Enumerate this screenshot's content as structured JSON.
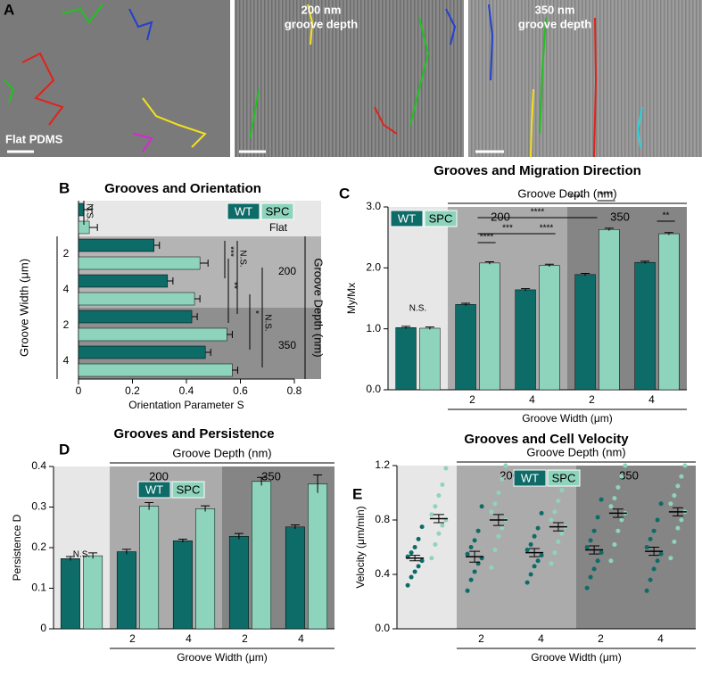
{
  "panel_labels": [
    "A",
    "B",
    "C",
    "D",
    "E"
  ],
  "images": [
    {
      "label": [
        "Flat PDMS"
      ]
    },
    {
      "label": [
        "200 nm",
        "groove depth"
      ]
    },
    {
      "label": [
        "350 nm",
        "groove depth"
      ]
    }
  ],
  "chart_data": [
    {
      "type": "hbar",
      "title": "Grooves and Orientation",
      "xlabel": "Orientation Parameter S",
      "ylabel": "Groove Width (μm)",
      "depth_title": "Groove Depth (nm)",
      "categories": [
        null,
        "2",
        "4",
        "2",
        "4"
      ],
      "depth_labels": [
        "Flat",
        "200",
        "350"
      ],
      "xlim": [
        0,
        0.8
      ],
      "xticks": [
        0,
        0.2,
        0.4,
        0.6,
        0.8
      ],
      "series": [
        {
          "name": "WT",
          "color": "#0d6b68",
          "values": [
            0.02,
            0.28,
            0.33,
            0.42,
            0.47
          ],
          "errors": [
            0.03,
            0.02,
            0.02,
            0.02,
            0.02
          ]
        },
        {
          "name": "SPC",
          "color": "#8ed4bd",
          "values": [
            0.04,
            0.45,
            0.43,
            0.55,
            0.57
          ],
          "errors": [
            0.03,
            0.03,
            0.02,
            0.02,
            0.02
          ]
        }
      ],
      "annotations": [
        "N.S.",
        "***",
        "N.S.",
        "**",
        "*",
        "N.S."
      ]
    },
    {
      "type": "bar",
      "title": "Grooves and Migration Direction",
      "ylabel": "My/Mx",
      "xlabel": "Groove Width (μm)",
      "depth_title": "Groove Depth (nm)",
      "categories": [
        null,
        "2",
        "4",
        "2",
        "4"
      ],
      "depth_labels": [
        "200",
        "350"
      ],
      "ylim": [
        0,
        3
      ],
      "yticks": [
        {
          "value": 0,
          "label": "0.0"
        },
        {
          "value": 1,
          "label": "1.0"
        },
        {
          "value": 2,
          "label": "2.0"
        },
        {
          "value": 3,
          "label": "3.0"
        }
      ],
      "series": [
        {
          "name": "WT",
          "color": "#0d6b68",
          "values": [
            1.02,
            1.4,
            1.64,
            1.89,
            2.09
          ],
          "errors": [
            0.02,
            0.02,
            0.02,
            0.02,
            0.02
          ]
        },
        {
          "name": "SPC",
          "color": "#8ed4bd",
          "values": [
            1.01,
            2.08,
            2.04,
            2.63,
            2.56
          ],
          "errors": [
            0.02,
            0.02,
            0.02,
            0.02,
            0.02
          ]
        }
      ],
      "annotations": [
        "N.S.",
        "****",
        "***",
        "****",
        "****",
        "****",
        "****",
        "**"
      ]
    },
    {
      "type": "bar",
      "title": "Grooves and Persistence",
      "ylabel": "Persistence D",
      "xlabel": "Groove Width (μm)",
      "depth_title": "Groove Depth (nm)",
      "categories": [
        null,
        "2",
        "4",
        "2",
        "4"
      ],
      "depth_labels": [
        "200",
        "350"
      ],
      "ylim": [
        0,
        0.4
      ],
      "yticks": [
        0,
        0.1,
        0.2,
        0.3,
        0.4
      ],
      "series": [
        {
          "name": "WT",
          "color": "#0d6b68",
          "values": [
            0.173,
            0.19,
            0.217,
            0.228,
            0.251
          ],
          "errors": [
            0.005,
            0.006,
            0.004,
            0.007,
            0.005
          ]
        },
        {
          "name": "SPC",
          "color": "#8ed4bd",
          "values": [
            0.18,
            0.302,
            0.296,
            0.363,
            0.357
          ],
          "errors": [
            0.007,
            0.009,
            0.007,
            0.01,
            0.022
          ]
        }
      ],
      "annotations": [
        "N.S."
      ]
    },
    {
      "type": "dot",
      "title": "Grooves and Cell Velocity",
      "ylabel": "Velocity (μm/min)",
      "xlabel": "Groove Width (μm)",
      "depth_title": "Groove Depth (nm)",
      "categories": [
        null,
        "2",
        "4",
        "2",
        "4"
      ],
      "depth_labels": [
        "200",
        "350"
      ],
      "ylim": [
        0,
        1.2
      ],
      "yticks": [
        {
          "value": 0,
          "label": "0.0"
        },
        0.4,
        0.8,
        1.2
      ],
      "series": [
        {
          "name": "WT",
          "color": "#0d6b68",
          "values": [
            0.52,
            0.53,
            0.56,
            0.58,
            0.57
          ],
          "errors": [
            0.02,
            0.04,
            0.03,
            0.03,
            0.03
          ],
          "points": [
            [
              0.32,
              0.38,
              0.42,
              0.46,
              0.5,
              0.53,
              0.56,
              0.6,
              0.66,
              0.75
            ],
            [
              0.28,
              0.36,
              0.42,
              0.48,
              0.52,
              0.55,
              0.6,
              0.65,
              0.72,
              0.9
            ],
            [
              0.34,
              0.4,
              0.46,
              0.5,
              0.54,
              0.58,
              0.62,
              0.68,
              0.74,
              0.85
            ],
            [
              0.3,
              0.38,
              0.44,
              0.5,
              0.56,
              0.6,
              0.65,
              0.72,
              0.82,
              0.95
            ],
            [
              0.28,
              0.36,
              0.44,
              0.5,
              0.55,
              0.6,
              0.66,
              0.72,
              0.8,
              0.92
            ]
          ]
        },
        {
          "name": "SPC",
          "color": "#8ed4bd",
          "values": [
            0.81,
            0.8,
            0.75,
            0.85,
            0.86
          ],
          "errors": [
            0.03,
            0.04,
            0.03,
            0.03,
            0.03
          ],
          "points": [
            [
              0.52,
              0.62,
              0.7,
              0.76,
              0.8,
              0.84,
              0.9,
              0.98,
              1.06,
              1.18
            ],
            [
              0.45,
              0.58,
              0.68,
              0.74,
              0.8,
              0.86,
              0.92,
              1.0,
              1.1,
              1.2
            ],
            [
              0.48,
              0.56,
              0.64,
              0.7,
              0.75,
              0.8,
              0.86,
              0.94,
              1.02,
              1.15
            ],
            [
              0.5,
              0.62,
              0.72,
              0.8,
              0.85,
              0.9,
              0.96,
              1.04,
              1.12,
              1.2
            ],
            [
              0.52,
              0.64,
              0.74,
              0.8,
              0.86,
              0.92,
              0.98,
              1.05,
              1.12,
              1.2
            ]
          ]
        }
      ]
    }
  ]
}
